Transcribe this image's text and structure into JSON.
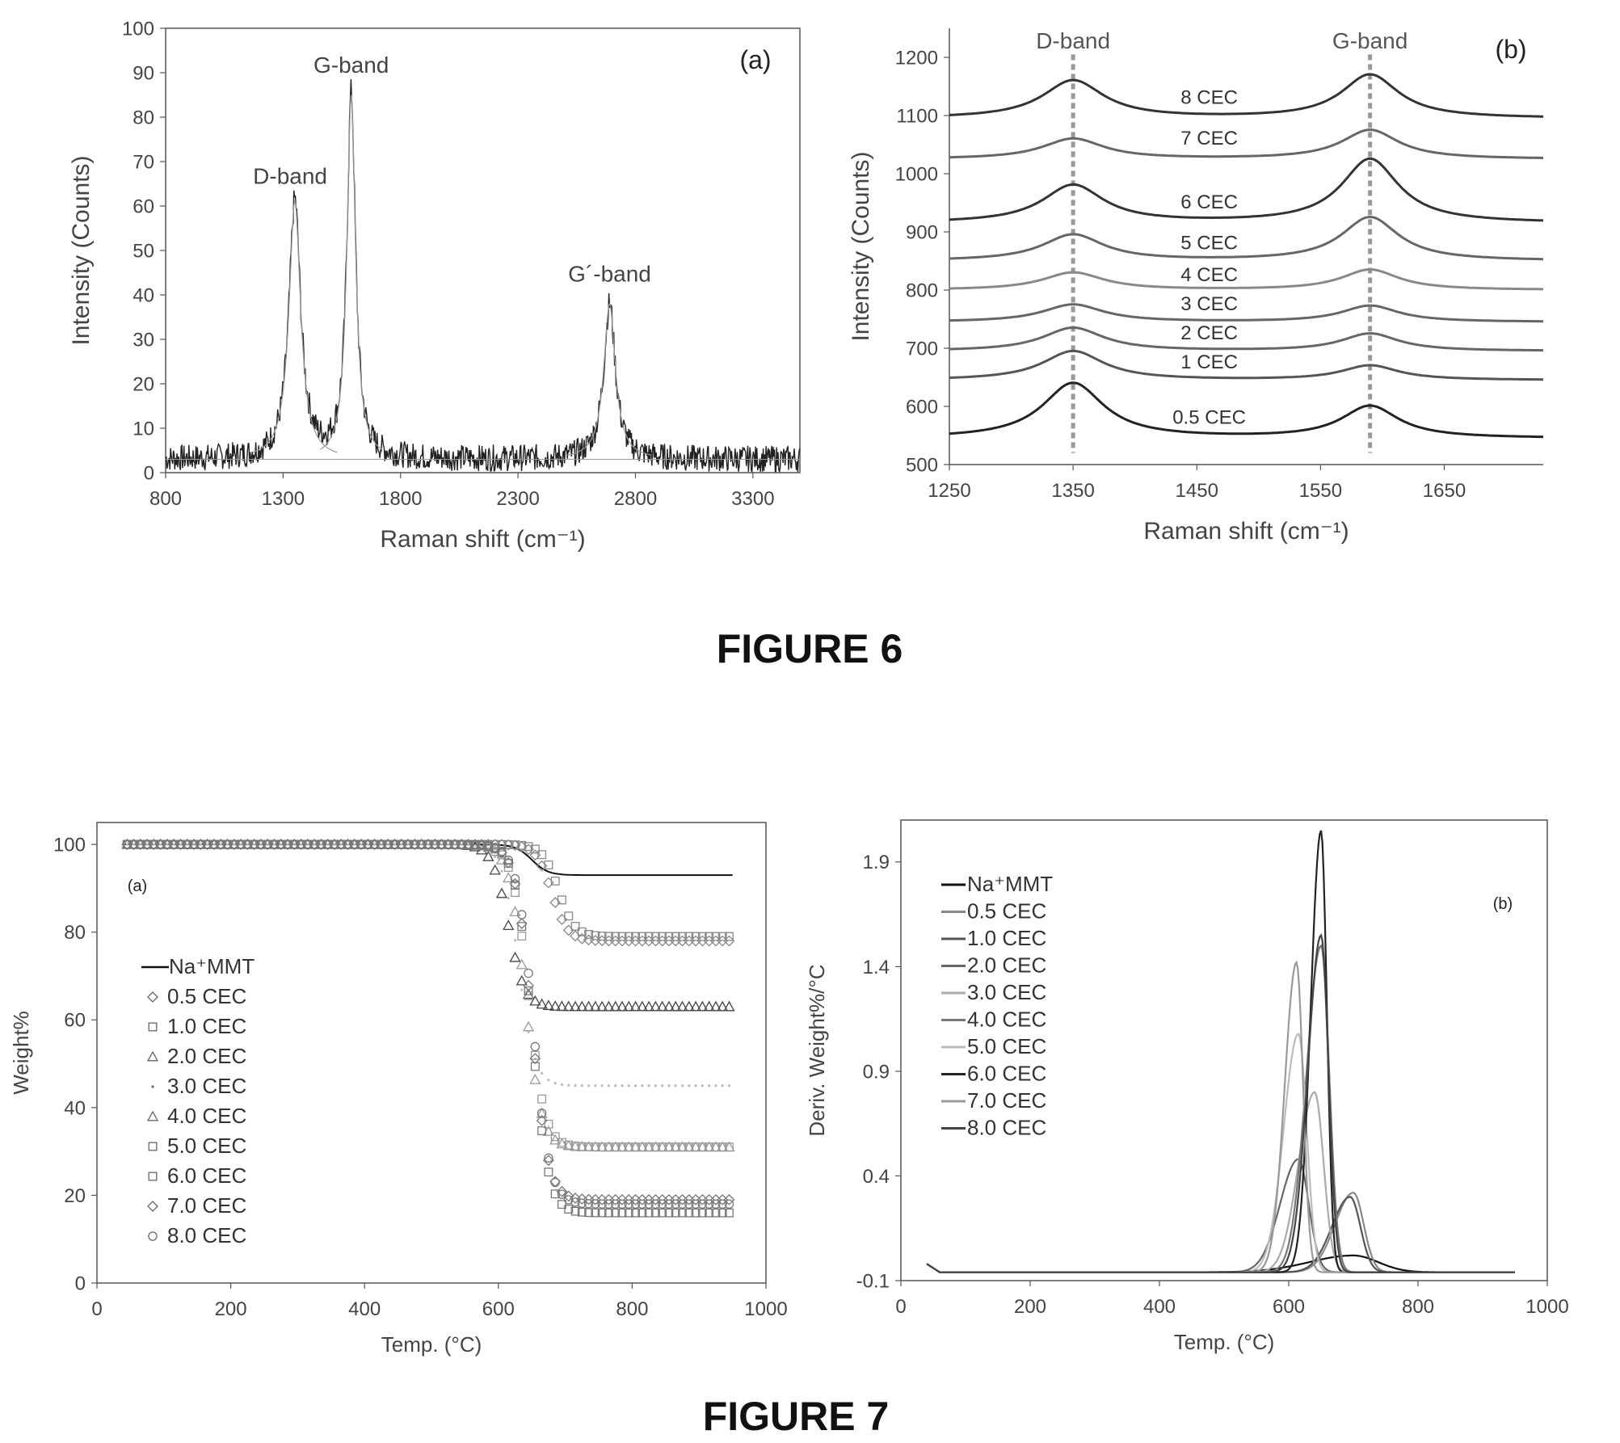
{
  "figures": [
    {
      "title": "FIGURE 6"
    },
    {
      "title": "FIGURE 7"
    }
  ],
  "chart_data": [
    {
      "id": "fig6a",
      "type": "line",
      "panel_label": "(a)",
      "xlabel": "Raman shift (cm⁻¹)",
      "ylabel": "Intensity (Counts)",
      "xlim": [
        800,
        3500
      ],
      "ylim": [
        0,
        100
      ],
      "xticks": [
        800,
        1300,
        1800,
        2300,
        2800,
        3300
      ],
      "yticks": [
        0,
        10,
        20,
        30,
        40,
        50,
        60,
        70,
        80,
        90,
        100
      ],
      "grid": false,
      "annotations": [
        {
          "text": "D-band",
          "x": 1330,
          "y": 65
        },
        {
          "text": "G-band",
          "x": 1590,
          "y": 90
        },
        {
          "text": "G´-band",
          "x": 2690,
          "y": 43
        }
      ],
      "peaks": [
        {
          "name": "D-band",
          "center": 1350,
          "height": 58,
          "width": 30
        },
        {
          "name": "G-band",
          "center": 1590,
          "height": 82,
          "width": 22
        },
        {
          "name": "G´-band",
          "center": 2690,
          "height": 35,
          "width": 30
        }
      ],
      "baseline": 3
    },
    {
      "id": "fig6b",
      "type": "line",
      "panel_label": "(b)",
      "xlabel": "Raman shift (cm⁻¹)",
      "ylabel": "Intensity (Counts)",
      "xlim": [
        1250,
        1730
      ],
      "ylim": [
        500,
        1250
      ],
      "xticks": [
        1250,
        1350,
        1450,
        1550,
        1650
      ],
      "yticks": [
        500,
        600,
        700,
        800,
        900,
        1000,
        1100,
        1200
      ],
      "grid": false,
      "annotations": [
        {
          "text": "D-band",
          "x": 1350,
          "y": 1215
        },
        {
          "text": "G-band",
          "x": 1590,
          "y": 1215
        }
      ],
      "reference_lines": [
        1350,
        1590
      ],
      "series": [
        {
          "name": "8 CEC",
          "baseline": 1095,
          "d_height": 65,
          "g_height": 75,
          "label_x": 1460,
          "label_y": 1120,
          "color": "#333333"
        },
        {
          "name": "7 CEC",
          "baseline": 1025,
          "d_height": 35,
          "g_height": 50,
          "label_x": 1460,
          "label_y": 1050,
          "color": "#666666"
        },
        {
          "name": "6 CEC",
          "baseline": 915,
          "d_height": 65,
          "g_height": 110,
          "label_x": 1460,
          "label_y": 940,
          "color": "#333333"
        },
        {
          "name": "5 CEC",
          "baseline": 850,
          "d_height": 45,
          "g_height": 75,
          "label_x": 1460,
          "label_y": 870,
          "color": "#666666"
        },
        {
          "name": "4 CEC",
          "baseline": 800,
          "d_height": 30,
          "g_height": 35,
          "label_x": 1460,
          "label_y": 815,
          "color": "#888888"
        },
        {
          "name": "3 CEC",
          "baseline": 745,
          "d_height": 30,
          "g_height": 28,
          "label_x": 1460,
          "label_y": 765,
          "color": "#666666"
        },
        {
          "name": "2 CEC",
          "baseline": 695,
          "d_height": 40,
          "g_height": 30,
          "label_x": 1460,
          "label_y": 715,
          "color": "#666666"
        },
        {
          "name": "1 CEC",
          "baseline": 645,
          "d_height": 50,
          "g_height": 25,
          "label_x": 1460,
          "label_y": 665,
          "color": "#555555"
        },
        {
          "name": "0.5 CEC",
          "baseline": 545,
          "d_height": 95,
          "g_height": 55,
          "label_x": 1460,
          "label_y": 570,
          "color": "#222222"
        }
      ]
    },
    {
      "id": "fig7a",
      "type": "scatter",
      "panel_label": "(a)",
      "xlabel": "Temp. (°C)",
      "ylabel": "Weight%",
      "xlim": [
        0,
        1000
      ],
      "ylim": [
        0,
        105
      ],
      "xticks": [
        0,
        200,
        400,
        600,
        800,
        1000
      ],
      "yticks": [
        0,
        20,
        40,
        60,
        80,
        100
      ],
      "grid": false,
      "legend": "left",
      "series": [
        {
          "name": "Na⁺MMT",
          "marker": "line",
          "final": 93,
          "onset": 650,
          "color": "#111111"
        },
        {
          "name": "0.5 CEC",
          "marker": "diamond",
          "final": 78,
          "onset": 680,
          "color": "#888888"
        },
        {
          "name": "1.0 CEC",
          "marker": "square",
          "final": 79,
          "onset": 690,
          "color": "#888888"
        },
        {
          "name": "2.0 CEC",
          "marker": "triangle",
          "final": 63,
          "onset": 615,
          "color": "#444444"
        },
        {
          "name": "3.0 CEC",
          "marker": "none",
          "final": 45,
          "onset": 630,
          "color": "#bbbbbb"
        },
        {
          "name": "4.0 CEC",
          "marker": "triangle",
          "final": 31,
          "onset": 640,
          "color": "#999999"
        },
        {
          "name": "5.0 CEC",
          "marker": "square",
          "final": 31,
          "onset": 645,
          "color": "#999999"
        },
        {
          "name": "6.0 CEC",
          "marker": "square",
          "final": 16,
          "onset": 650,
          "color": "#777777"
        },
        {
          "name": "7.0 CEC",
          "marker": "diamond",
          "final": 19,
          "onset": 650,
          "color": "#777777"
        },
        {
          "name": "8.0 CEC",
          "marker": "circle",
          "final": 18,
          "onset": 652,
          "color": "#777777"
        }
      ]
    },
    {
      "id": "fig7b",
      "type": "line",
      "panel_label": "(b)",
      "xlabel": "Temp. (°C)",
      "ylabel": "Deriv. Weight%/°C",
      "xlim": [
        0,
        1000
      ],
      "ylim": [
        -0.1,
        2.1
      ],
      "xticks": [
        0,
        200,
        400,
        600,
        800,
        1000
      ],
      "yticks": [
        -0.1,
        0.4,
        0.9,
        1.4,
        1.9
      ],
      "grid": false,
      "legend": "top-left",
      "series": [
        {
          "name": "Na⁺MMT",
          "peak_x": 700,
          "peak_y": 0.02,
          "width": 60,
          "color": "#111111"
        },
        {
          "name": "0.5 CEC",
          "peak_x": 700,
          "peak_y": 0.32,
          "width": 25,
          "color": "#888888"
        },
        {
          "name": "1.0 CEC",
          "peak_x": 695,
          "peak_y": 0.3,
          "width": 25,
          "color": "#555555"
        },
        {
          "name": "2.0 CEC",
          "peak_x": 615,
          "peak_y": 0.48,
          "width": 25,
          "color": "#666666"
        },
        {
          "name": "3.0 CEC",
          "peak_x": 640,
          "peak_y": 0.8,
          "width": 22,
          "color": "#aaaaaa"
        },
        {
          "name": "4.0 CEC",
          "peak_x": 650,
          "peak_y": 1.5,
          "width": 20,
          "color": "#777777"
        },
        {
          "name": "5.0 CEC",
          "peak_x": 615,
          "peak_y": 1.08,
          "width": 20,
          "color": "#bbbbbb"
        },
        {
          "name": "6.0 CEC",
          "peak_x": 650,
          "peak_y": 2.05,
          "width": 14,
          "color": "#222222"
        },
        {
          "name": "7.0 CEC",
          "peak_x": 612,
          "peak_y": 1.42,
          "width": 16,
          "color": "#999999"
        },
        {
          "name": "8.0 CEC",
          "peak_x": 650,
          "peak_y": 1.55,
          "width": 18,
          "color": "#444444"
        }
      ]
    }
  ]
}
